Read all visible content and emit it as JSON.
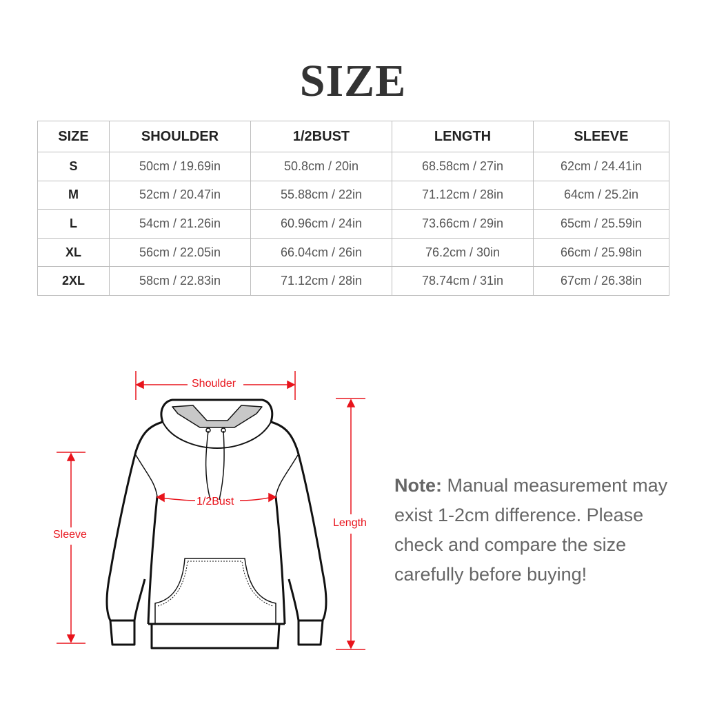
{
  "title": "SIZE",
  "table": {
    "headers": [
      "SIZE",
      "SHOULDER",
      "1/2BUST",
      "LENGTH",
      "SLEEVE"
    ],
    "rows": [
      [
        "S",
        "50cm / 19.69in",
        "50.8cm / 20in",
        "68.58cm / 27in",
        "62cm / 24.41in"
      ],
      [
        "M",
        "52cm / 20.47in",
        "55.88cm / 22in",
        "71.12cm / 28in",
        "64cm / 25.2in"
      ],
      [
        "L",
        "54cm / 21.26in",
        "60.96cm / 24in",
        "73.66cm / 29in",
        "65cm / 25.59in"
      ],
      [
        "XL",
        "56cm / 22.05in",
        "66.04cm / 26in",
        "76.2cm / 30in",
        "66cm / 25.98in"
      ],
      [
        "2XL",
        "58cm / 22.83in",
        "71.12cm / 28in",
        "78.74cm / 31in",
        "67cm / 26.38in"
      ]
    ]
  },
  "diagram": {
    "labels": {
      "shoulder": "Shoulder",
      "bust": "1/2Bust",
      "sleeve": "Sleeve",
      "length": "Length"
    },
    "accent_color": "#e8141c"
  },
  "note": {
    "label": "Note:",
    "text": "Manual measurement may exist 1-2cm difference. Please check and compare the size carefully before buying!"
  }
}
